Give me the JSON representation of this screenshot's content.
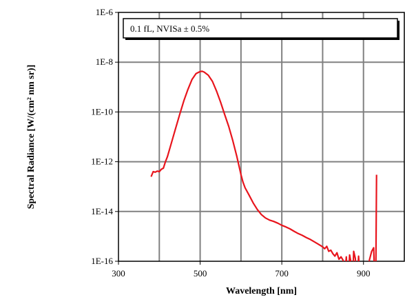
{
  "chart_data": {
    "type": "line",
    "xlabel": "Wavelength [nm]",
    "ylabel": "Spectral Radiance [W/(cm² nm sr)]",
    "xlim": [
      300,
      1000
    ],
    "ylim_log10": [
      -16,
      -6
    ],
    "y_scale": "log",
    "x_ticks": [
      300,
      500,
      700,
      900
    ],
    "x_tick_labels": [
      "300",
      "500",
      "700",
      "900"
    ],
    "y_ticks_log10": [
      -6,
      -8,
      -10,
      -12,
      -14,
      -16
    ],
    "y_tick_labels": [
      "1E-6",
      "1E-8",
      "1E-10",
      "1E-12",
      "1E-14",
      "1E-16"
    ],
    "x_gridlines": [
      400,
      500,
      600,
      700,
      800,
      900
    ],
    "y_gridlines_log10": [
      -8,
      -10,
      -12,
      -14
    ],
    "grid": true,
    "legend": {
      "placement": "top",
      "text": "0.1 fL, NVISa ± 0.5%"
    },
    "series": [
      {
        "color": "#e8141c",
        "x": [
          380,
          385,
          390,
          395,
          400,
          405,
          410,
          415,
          420,
          430,
          440,
          450,
          460,
          470,
          480,
          490,
          500,
          505,
          510,
          520,
          530,
          540,
          550,
          560,
          570,
          580,
          590,
          600,
          605,
          610,
          620,
          630,
          640,
          650,
          660,
          670,
          680,
          690,
          700,
          710,
          720,
          730,
          740,
          750,
          760,
          770,
          780,
          790,
          800,
          805,
          810,
          815,
          820,
          825,
          830,
          835,
          840,
          845,
          850,
          855,
          858,
          862,
          866,
          870,
          873,
          876,
          880,
          884,
          888,
          892,
          896,
          900,
          905,
          910,
          915,
          920,
          925,
          928,
          930,
          932
        ],
        "y": [
          2.5e-13,
          4e-13,
          3.8e-13,
          4.2e-13,
          4e-13,
          5e-13,
          5.5e-13,
          1e-12,
          1.6e-12,
          6e-12,
          2.2e-11,
          8e-11,
          2.8e-10,
          8e-10,
          2e-09,
          3.5e-09,
          4.2e-09,
          4.3e-09,
          4e-09,
          3e-09,
          1.7e-09,
          7e-10,
          2.5e-10,
          8e-11,
          2.6e-11,
          7e-12,
          1.6e-12,
          3e-13,
          1.5e-13,
          9e-14,
          4.5e-14,
          2.2e-14,
          1.2e-14,
          7.5e-15,
          5.5e-15,
          4.5e-15,
          4e-15,
          3.4e-15,
          2.8e-15,
          2.4e-15,
          2e-15,
          1.6e-15,
          1.3e-15,
          1.1e-15,
          9e-16,
          7.5e-16,
          6e-16,
          4.8e-16,
          3.8e-16,
          3.2e-16,
          4e-16,
          2.5e-16,
          2.8e-16,
          2e-16,
          1.6e-16,
          2.2e-16,
          1.2e-16,
          1.5e-16,
          1.1e-16,
          4e-17,
          1.5e-16,
          1e-17,
          1.8e-16,
          8e-17,
          1.2e-17,
          2.5e-16,
          1.3e-16,
          1e-17,
          1.6e-16,
          2e-17,
          1.2e-17,
          1e-17,
          1.5e-17,
          5e-17,
          1.2e-16,
          2.5e-16,
          3.5e-16,
          1e-17,
          1e-17,
          3e-13
        ]
      }
    ]
  }
}
